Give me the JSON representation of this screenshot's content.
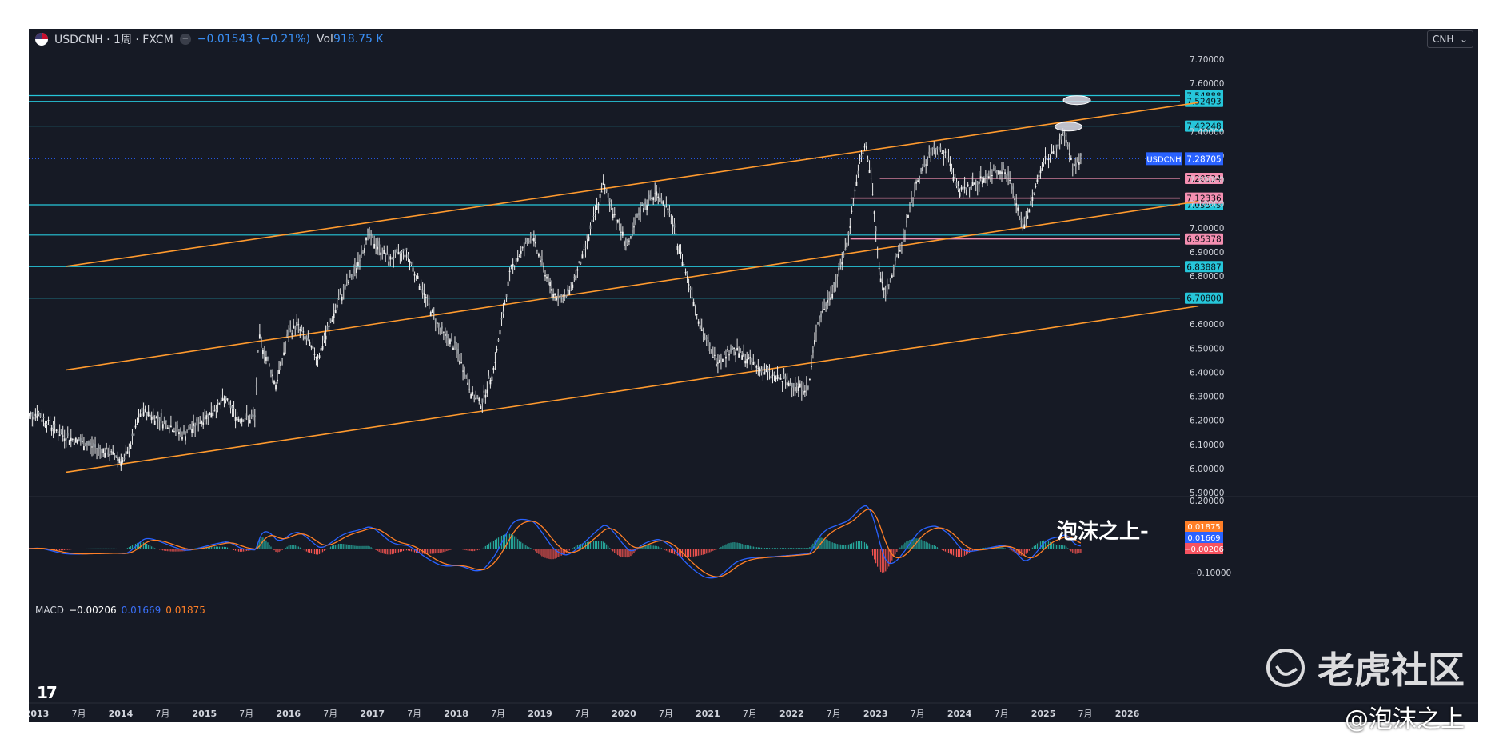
{
  "header": {
    "symbol": "USDCNH · 1周 · FXCM",
    "dot_button": "−",
    "change": "−0.01543 (−0.21%)",
    "vol_label": "Vol",
    "vol_value": "918.75 K",
    "currency": "CNH"
  },
  "chart_data": {
    "type": "candlestick-weekly",
    "symbol": "USDCNH",
    "y_ticks": [
      "7.70000",
      "7.60000",
      "7.40000",
      "7.30000",
      "7.20000",
      "7.10000",
      "7.00000",
      "6.90000",
      "6.80000",
      "6.60000",
      "6.50000",
      "6.40000",
      "6.30000",
      "6.20000",
      "6.10000",
      "6.00000",
      "5.90000"
    ],
    "x_ticks": [
      {
        "label": "2013",
        "t": 2013.0
      },
      {
        "label": "7月",
        "t": 2013.5
      },
      {
        "label": "2014",
        "t": 2014.0
      },
      {
        "label": "7月",
        "t": 2014.5
      },
      {
        "label": "2015",
        "t": 2015.0
      },
      {
        "label": "7月",
        "t": 2015.5
      },
      {
        "label": "2016",
        "t": 2016.0
      },
      {
        "label": "7月",
        "t": 2016.5
      },
      {
        "label": "2017",
        "t": 2017.0
      },
      {
        "label": "7月",
        "t": 2017.5
      },
      {
        "label": "2018",
        "t": 2018.0
      },
      {
        "label": "7月",
        "t": 2018.5
      },
      {
        "label": "2019",
        "t": 2019.0
      },
      {
        "label": "7月",
        "t": 2019.5
      },
      {
        "label": "2020",
        "t": 2020.0
      },
      {
        "label": "7月",
        "t": 2020.5
      },
      {
        "label": "2021",
        "t": 2021.0
      },
      {
        "label": "7月",
        "t": 2021.5
      },
      {
        "label": "2022",
        "t": 2022.0
      },
      {
        "label": "7月",
        "t": 2022.5
      },
      {
        "label": "2023",
        "t": 2023.0
      },
      {
        "label": "7月",
        "t": 2023.5
      },
      {
        "label": "2024",
        "t": 2024.0
      },
      {
        "label": "7月",
        "t": 2024.5
      },
      {
        "label": "2025",
        "t": 2025.0
      },
      {
        "label": "7月",
        "t": 2025.5
      },
      {
        "label": "2026",
        "t": 2026.0
      }
    ],
    "price_path": [
      [
        2012.85,
        6.22
      ],
      [
        2013.0,
        6.23
      ],
      [
        2013.3,
        6.14
      ],
      [
        2013.6,
        6.1
      ],
      [
        2013.9,
        6.06
      ],
      [
        2014.05,
        6.03
      ],
      [
        2014.25,
        6.24
      ],
      [
        2014.5,
        6.2
      ],
      [
        2014.75,
        6.14
      ],
      [
        2015.0,
        6.21
      ],
      [
        2015.25,
        6.29
      ],
      [
        2015.4,
        6.21
      ],
      [
        2015.6,
        6.21
      ],
      [
        2015.65,
        6.55
      ],
      [
        2015.85,
        6.35
      ],
      [
        2016.0,
        6.56
      ],
      [
        2016.1,
        6.6
      ],
      [
        2016.35,
        6.46
      ],
      [
        2016.6,
        6.7
      ],
      [
        2016.8,
        6.83
      ],
      [
        2016.95,
        6.97
      ],
      [
        2017.2,
        6.87
      ],
      [
        2017.4,
        6.9
      ],
      [
        2017.65,
        6.7
      ],
      [
        2017.8,
        6.58
      ],
      [
        2018.0,
        6.5
      ],
      [
        2018.2,
        6.3
      ],
      [
        2018.3,
        6.27
      ],
      [
        2018.45,
        6.42
      ],
      [
        2018.65,
        6.83
      ],
      [
        2018.9,
        6.97
      ],
      [
        2019.15,
        6.73
      ],
      [
        2019.3,
        6.7
      ],
      [
        2019.5,
        6.87
      ],
      [
        2019.65,
        7.05
      ],
      [
        2019.75,
        7.18
      ],
      [
        2019.95,
        7.0
      ],
      [
        2020.05,
        6.92
      ],
      [
        2020.2,
        7.08
      ],
      [
        2020.4,
        7.15
      ],
      [
        2020.55,
        7.05
      ],
      [
        2020.75,
        6.8
      ],
      [
        2020.95,
        6.55
      ],
      [
        2021.1,
        6.45
      ],
      [
        2021.3,
        6.5
      ],
      [
        2021.5,
        6.45
      ],
      [
        2021.6,
        6.42
      ],
      [
        2021.8,
        6.38
      ],
      [
        2022.0,
        6.35
      ],
      [
        2022.2,
        6.33
      ],
      [
        2022.3,
        6.6
      ],
      [
        2022.5,
        6.75
      ],
      [
        2022.65,
        6.92
      ],
      [
        2022.8,
        7.25
      ],
      [
        2022.88,
        7.35
      ],
      [
        2022.95,
        7.2
      ],
      [
        2023.05,
        6.8
      ],
      [
        2023.12,
        6.73
      ],
      [
        2023.3,
        6.92
      ],
      [
        2023.5,
        7.2
      ],
      [
        2023.7,
        7.33
      ],
      [
        2023.85,
        7.3
      ],
      [
        2024.0,
        7.15
      ],
      [
        2024.25,
        7.2
      ],
      [
        2024.5,
        7.25
      ],
      [
        2024.6,
        7.2
      ],
      [
        2024.75,
        7.0
      ],
      [
        2024.85,
        7.1
      ],
      [
        2025.0,
        7.28
      ],
      [
        2025.15,
        7.32
      ],
      [
        2025.25,
        7.4
      ],
      [
        2025.35,
        7.25
      ],
      [
        2025.45,
        7.29
      ]
    ],
    "horizontal_levels": [
      {
        "label": "7.54888",
        "value": 7.54888,
        "color": "#26c6da",
        "style": "solid"
      },
      {
        "label": "7.52493",
        "value": 7.52493,
        "color": "#26c6da",
        "style": "solid"
      },
      {
        "label": "7.42248",
        "value": 7.42248,
        "color": "#26c6da",
        "style": "solid"
      },
      {
        "label": "7.09549",
        "value": 7.09549,
        "color": "#26c6da",
        "style": "solid"
      },
      {
        "label": "6.97",
        "value": 6.97,
        "color": "#26c6da",
        "style": "solid",
        "nobadge": true
      },
      {
        "label": "6.83887",
        "value": 6.83887,
        "color": "#26c6da",
        "style": "solid"
      },
      {
        "label": "6.70800",
        "value": 6.708,
        "color": "#26c6da",
        "style": "solid"
      },
      {
        "label": "7.20534",
        "value": 7.20534,
        "color": "#f48fb1",
        "style": "pink",
        "from": 2023.05
      },
      {
        "label": "7.12336",
        "value": 7.12336,
        "color": "#f48fb1",
        "style": "pink",
        "from": 2022.7
      },
      {
        "label": "6.95378",
        "value": 6.95378,
        "color": "#f48fb1",
        "style": "pink",
        "from": 2022.7
      }
    ],
    "last_price": {
      "symbol": "USDCNH",
      "value": "7.28705",
      "y": 7.28705
    },
    "channel_lines": [
      {
        "from": [
          2013.35,
          6.84
        ],
        "to": [
          2026.85,
          7.52
        ]
      },
      {
        "from": [
          2013.35,
          6.41
        ],
        "to": [
          2026.85,
          7.11
        ]
      },
      {
        "from": [
          2013.35,
          5.985
        ],
        "to": [
          2026.85,
          6.675
        ]
      }
    ],
    "highlights": [
      {
        "t": 2025.3,
        "y": 7.42,
        "label": "ellipse"
      },
      {
        "t": 2025.4,
        "y": 7.53,
        "label": "ellipse"
      }
    ],
    "macd": {
      "label": "MACD",
      "hist": "−0.00206",
      "macd": "0.01669",
      "signal": "0.01875",
      "y_ticks": [
        "0.20000",
        "−0.10000"
      ],
      "badges": [
        {
          "label": "0.01875",
          "color": "#ff7f27"
        },
        {
          "label": "0.01669",
          "color": "#2962ff"
        },
        {
          "label": "−0.00206",
          "color": "#f7525f"
        }
      ]
    }
  },
  "watermarks": {
    "center": "泡沫之上-",
    "tiger": "老虎社区",
    "credit": "@泡沫之上"
  },
  "colors": {
    "bg": "#161a25",
    "candle": "#e8e8e8",
    "channel": "#ff9a2e",
    "level": "#26c6da",
    "pink": "#f48fb1",
    "macd_line": "#2962ff",
    "signal_line": "#ff7f27",
    "last_price_badge": "#2962ff"
  }
}
